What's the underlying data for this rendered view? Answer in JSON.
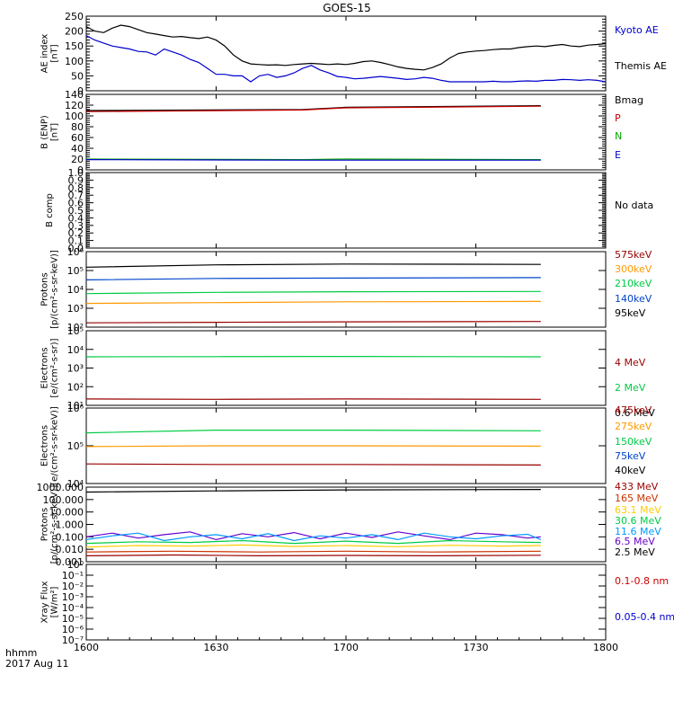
{
  "title": "GOES-15",
  "footer": {
    "time_label": "hhmm",
    "date_label": "2017 Aug 11"
  },
  "x_ticks": [
    "1600",
    "1630",
    "1700",
    "1730",
    "1800"
  ],
  "panels": [
    {
      "id": "ae",
      "ylabel": [
        "AE index",
        "[nT]"
      ],
      "y_ticks": [
        "0",
        "50",
        "100",
        "150",
        "200",
        "250"
      ],
      "legend": [
        {
          "text": "Kyoto AE",
          "color": "#0000cc"
        },
        {
          "text": "Themis AE",
          "color": "#000000"
        }
      ]
    },
    {
      "id": "bfield",
      "ylabel": [
        "B (ENP)",
        "[nT]"
      ],
      "y_ticks": [
        "0",
        "20",
        "40",
        "60",
        "80",
        "100",
        "120",
        "140"
      ],
      "legend": [
        {
          "text": "Bmag",
          "color": "#000000"
        },
        {
          "text": "P",
          "color": "#cc0000"
        },
        {
          "text": "N",
          "color": "#00aa00"
        },
        {
          "text": "E",
          "color": "#0000cc"
        }
      ]
    },
    {
      "id": "bcomp",
      "ylabel": [
        "B comp"
      ],
      "y_ticks": [
        "0.0",
        "0.1",
        "0.2",
        "0.3",
        "0.4",
        "0.5",
        "0.6",
        "0.7",
        "0.8",
        "0.9",
        "1.0"
      ],
      "legend": [
        {
          "text": "No data",
          "color": "#000000"
        }
      ]
    },
    {
      "id": "protons",
      "ylabel": [
        "Protons",
        "[p/(cm²-s-sr-keV)]"
      ],
      "y_ticks": [
        "10²",
        "10³",
        "10⁴",
        "10⁵",
        "10⁶"
      ],
      "legend": [
        {
          "text": "575keV",
          "color": "#990000"
        },
        {
          "text": "300keV",
          "color": "#ff9900"
        },
        {
          "text": "210keV",
          "color": "#00cc44"
        },
        {
          "text": "140keV",
          "color": "#0044cc"
        },
        {
          "text": "95keV",
          "color": "#000000"
        }
      ]
    },
    {
      "id": "electrons_mev",
      "ylabel": [
        "Electrons",
        "[e/(cm²-s-sr)]"
      ],
      "y_ticks": [
        "10¹",
        "10²",
        "10³",
        "10⁴",
        "10⁵"
      ],
      "legend": [
        {
          "text": "4 MeV",
          "color": "#990000"
        },
        {
          "text": "2 MeV",
          "color": "#00cc44"
        },
        {
          "text": "0.6 MeV",
          "color": "#000000"
        }
      ]
    },
    {
      "id": "electrons_kev",
      "ylabel": [
        "Electrons",
        "[e/(cm²-s-sr-keV)]"
      ],
      "y_ticks": [
        "10⁴",
        "10⁵",
        "10⁶"
      ],
      "legend": [
        {
          "text": "475keV",
          "color": "#990000"
        },
        {
          "text": "275keV",
          "color": "#ff9900"
        },
        {
          "text": "150keV",
          "color": "#00cc44"
        },
        {
          "text": "75keV",
          "color": "#0044cc"
        },
        {
          "text": "40keV",
          "color": "#000000"
        }
      ]
    },
    {
      "id": "protons_mev",
      "ylabel": [
        "Protons",
        "[p/(cm²-s-sr-keV)]"
      ],
      "y_ticks": [
        "0.001",
        "0.010",
        "0.100",
        "1.000",
        "10.000",
        "100.000",
        "1000.000"
      ],
      "legend": [
        {
          "text": "433 MeV",
          "color": "#990000"
        },
        {
          "text": "165 MeV",
          "color": "#cc3300"
        },
        {
          "text": "63.1 MeV",
          "color": "#ffcc00"
        },
        {
          "text": "30.6 MeV",
          "color": "#00cc44"
        },
        {
          "text": "11.6 MeV",
          "color": "#0099ff"
        },
        {
          "text": "6.5 MeV",
          "color": "#6600cc"
        },
        {
          "text": "2.5 MeV",
          "color": "#000000"
        }
      ]
    },
    {
      "id": "xray",
      "ylabel": [
        "Xray Flux",
        "[W/m²]"
      ],
      "y_ticks": [
        "10⁻⁷",
        "10⁻⁶",
        "10⁻⁵",
        "10⁻⁴",
        "10⁻³",
        "10⁻²",
        "10⁻¹",
        "10⁰"
      ],
      "legend": [
        {
          "text": "0.1-0.8 nm",
          "color": "#cc0000"
        },
        {
          "text": "0.05-0.4 nm",
          "color": "#0000cc"
        }
      ]
    }
  ],
  "chart_data": [
    {
      "type": "line",
      "ylim": [
        0,
        250
      ],
      "series": [
        {
          "name": "Themis AE",
          "color": "#000000",
          "x": [
            1600,
            1602,
            1604,
            1606,
            1608,
            1610,
            1612,
            1614,
            1616,
            1618,
            1620,
            1622,
            1624,
            1626,
            1628,
            1630,
            1632,
            1634,
            1636,
            1638,
            1640,
            1642,
            1644,
            1646,
            1648,
            1650,
            1652,
            1654,
            1656,
            1658,
            1700,
            1702,
            1704,
            1706,
            1708,
            1710,
            1712,
            1714,
            1716,
            1718,
            1720,
            1722,
            1724,
            1726,
            1728,
            1730,
            1732,
            1734,
            1736,
            1738,
            1740,
            1742,
            1744,
            1746,
            1748,
            1750,
            1752,
            1754,
            1756,
            1758,
            1800
          ],
          "y": [
            215,
            200,
            195,
            210,
            220,
            215,
            205,
            195,
            190,
            185,
            180,
            182,
            178,
            175,
            180,
            170,
            150,
            120,
            100,
            90,
            88,
            86,
            87,
            85,
            88,
            90,
            92,
            90,
            88,
            90,
            88,
            92,
            98,
            100,
            95,
            88,
            80,
            75,
            72,
            70,
            78,
            90,
            110,
            125,
            130,
            133,
            135,
            138,
            140,
            140,
            145,
            148,
            150,
            148,
            152,
            155,
            150,
            148,
            153,
            155,
            158
          ]
        },
        {
          "name": "Kyoto AE",
          "color": "#0000cc",
          "x": [
            1600,
            1602,
            1604,
            1606,
            1608,
            1610,
            1612,
            1614,
            1616,
            1618,
            1620,
            1622,
            1624,
            1626,
            1628,
            1630,
            1632,
            1634,
            1636,
            1638,
            1640,
            1642,
            1644,
            1646,
            1648,
            1650,
            1652,
            1654,
            1656,
            1658,
            1700,
            1702,
            1704,
            1706,
            1708,
            1710,
            1712,
            1714,
            1716,
            1718,
            1720,
            1722,
            1724,
            1726,
            1728,
            1730,
            1732,
            1734,
            1736,
            1738,
            1740,
            1742,
            1744,
            1746,
            1748,
            1750,
            1752,
            1754,
            1756,
            1758,
            1800
          ],
          "y": [
            185,
            170,
            160,
            150,
            145,
            140,
            132,
            130,
            120,
            140,
            130,
            120,
            105,
            95,
            75,
            55,
            55,
            50,
            50,
            30,
            50,
            55,
            45,
            50,
            60,
            75,
            85,
            70,
            60,
            48,
            45,
            40,
            42,
            45,
            48,
            45,
            42,
            38,
            40,
            45,
            42,
            35,
            30,
            30,
            30,
            30,
            30,
            32,
            30,
            30,
            32,
            33,
            32,
            35,
            35,
            38,
            37,
            35,
            37,
            35,
            30
          ]
        }
      ]
    },
    {
      "type": "line",
      "ylim": [
        0,
        140
      ],
      "series": [
        {
          "name": "Bmag",
          "color": "#000000",
          "x": [
            1600,
            1650,
            1700,
            1745,
            1758,
            1800
          ],
          "y": [
            110,
            112,
            116,
            119,
            null,
            122
          ]
        },
        {
          "name": "P",
          "color": "#cc0000",
          "x": [
            1600,
            1650,
            1700,
            1745,
            1758,
            1800
          ],
          "y": [
            108,
            111,
            115,
            118,
            null,
            121
          ]
        },
        {
          "name": "N",
          "color": "#00aa00",
          "x": [
            1600,
            1650,
            1700,
            1745,
            1758,
            1800
          ],
          "y": [
            20,
            19,
            20,
            19,
            null,
            19
          ]
        },
        {
          "name": "E",
          "color": "#0000cc",
          "x": [
            1600,
            1650,
            1700,
            1745,
            1758,
            1800
          ],
          "y": [
            19,
            18,
            18,
            18,
            null,
            18
          ]
        }
      ]
    },
    {
      "type": "line",
      "ylim": [
        0,
        1
      ],
      "series": []
    },
    {
      "type": "line",
      "log": true,
      "ylim": [
        100,
        1000000
      ],
      "series": [
        {
          "name": "95keV",
          "color": "#000000",
          "x": [
            1600,
            1630,
            1700,
            1745,
            1758,
            1800
          ],
          "y": [
            150000,
            200000,
            220000,
            210000,
            null,
            220000
          ]
        },
        {
          "name": "140keV",
          "color": "#0044cc",
          "x": [
            1600,
            1630,
            1700,
            1745,
            1758,
            1800
          ],
          "y": [
            32000,
            38000,
            40000,
            42000,
            null,
            42000
          ]
        },
        {
          "name": "210keV",
          "color": "#00cc44",
          "x": [
            1600,
            1630,
            1700,
            1745,
            1758,
            1800
          ],
          "y": [
            6000,
            7000,
            7500,
            7800,
            null,
            7800
          ]
        },
        {
          "name": "300keV",
          "color": "#ff9900",
          "x": [
            1600,
            1630,
            1700,
            1745,
            1758,
            1800
          ],
          "y": [
            1800,
            2000,
            2200,
            2300,
            null,
            2300
          ]
        },
        {
          "name": "575keV",
          "color": "#990000",
          "x": [
            1600,
            1630,
            1700,
            1745,
            1758,
            1800
          ],
          "y": [
            170,
            180,
            190,
            200,
            null,
            200
          ]
        }
      ]
    },
    {
      "type": "line",
      "log": true,
      "ylim": [
        10,
        100000
      ],
      "series": [
        {
          "name": "2 MeV",
          "color": "#00cc44",
          "x": [
            1600,
            1630,
            1700,
            1745,
            1758,
            1800
          ],
          "y": [
            4000,
            4100,
            4200,
            4000,
            null,
            4100
          ]
        },
        {
          "name": "4 MeV",
          "color": "#990000",
          "x": [
            1600,
            1630,
            1700,
            1745,
            1758,
            1800
          ],
          "y": [
            22,
            21,
            22,
            21,
            null,
            21
          ]
        }
      ]
    },
    {
      "type": "line",
      "log": true,
      "ylim": [
        10000,
        1000000
      ],
      "series": [
        {
          "name": "150keV",
          "color": "#00cc44",
          "x": [
            1600,
            1630,
            1700,
            1745,
            1758,
            1800
          ],
          "y": [
            220000,
            260000,
            260000,
            250000,
            null,
            250000
          ]
        },
        {
          "name": "275keV",
          "color": "#ff9900",
          "x": [
            1600,
            1630,
            1700,
            1745,
            1758,
            1800
          ],
          "y": [
            95000,
            100000,
            100000,
            98000,
            null,
            98000
          ]
        },
        {
          "name": "475keV",
          "color": "#990000",
          "x": [
            1600,
            1630,
            1700,
            1745,
            1758,
            1800
          ],
          "y": [
            33000,
            32000,
            32000,
            31000,
            null,
            31000
          ]
        }
      ]
    },
    {
      "type": "line",
      "log": true,
      "ylim": [
        0.001,
        1000
      ],
      "series": [
        {
          "name": "2.5 MeV",
          "color": "#000000",
          "x": [
            1600,
            1630,
            1700,
            1745,
            1758,
            1800
          ],
          "y": [
            400,
            500,
            600,
            650,
            null,
            700
          ]
        },
        {
          "name": "6.5 MeV",
          "color": "#6600cc",
          "x": [
            1600,
            1606,
            1612,
            1618,
            1624,
            1630,
            1636,
            1642,
            1648,
            1654,
            1700,
            1706,
            1712,
            1718,
            1724,
            1730,
            1736,
            1742,
            1745,
            1758,
            1800
          ],
          "y": [
            0.1,
            0.2,
            0.08,
            0.15,
            0.25,
            0.06,
            0.18,
            0.1,
            0.22,
            0.07,
            0.2,
            0.09,
            0.25,
            0.12,
            0.06,
            0.2,
            0.15,
            0.08,
            0.1,
            null,
            0.12
          ]
        },
        {
          "name": "11.6 MeV",
          "color": "#0099ff",
          "x": [
            1600,
            1606,
            1612,
            1618,
            1624,
            1630,
            1636,
            1642,
            1648,
            1654,
            1700,
            1706,
            1712,
            1718,
            1724,
            1730,
            1736,
            1742,
            1745,
            1758,
            1800
          ],
          "y": [
            0.06,
            0.12,
            0.2,
            0.05,
            0.1,
            0.15,
            0.07,
            0.18,
            0.05,
            0.12,
            0.08,
            0.15,
            0.06,
            0.2,
            0.1,
            0.07,
            0.12,
            0.16,
            0.06,
            null,
            0.08
          ]
        },
        {
          "name": "30.6 MeV",
          "color": "#00cc44",
          "x": [
            1600,
            1612,
            1624,
            1636,
            1648,
            1700,
            1712,
            1724,
            1736,
            1745,
            1758,
            1800
          ],
          "y": [
            0.03,
            0.04,
            0.035,
            0.05,
            0.03,
            0.045,
            0.03,
            0.05,
            0.04,
            0.035,
            null,
            0.04
          ]
        },
        {
          "name": "63.1 MeV",
          "color": "#ffcc00",
          "x": [
            1600,
            1612,
            1624,
            1636,
            1648,
            1700,
            1712,
            1724,
            1736,
            1745,
            1758,
            1800
          ],
          "y": [
            0.015,
            0.02,
            0.018,
            0.022,
            0.017,
            0.02,
            0.016,
            0.021,
            0.018,
            0.02,
            null,
            0.019
          ]
        },
        {
          "name": "165 MeV",
          "color": "#cc3300",
          "x": [
            1600,
            1620,
            1640,
            1700,
            1720,
            1745,
            1758,
            1800
          ],
          "y": [
            0.006,
            0.007,
            0.006,
            0.007,
            0.006,
            0.007,
            null,
            0.006
          ]
        },
        {
          "name": "433 MeV",
          "color": "#990000",
          "x": [
            1600,
            1620,
            1640,
            1700,
            1720,
            1745,
            1758,
            1800
          ],
          "y": [
            0.003,
            0.0035,
            0.003,
            0.0032,
            0.003,
            0.0033,
            null,
            0.003
          ]
        }
      ]
    },
    {
      "type": "line",
      "log": true,
      "ylim": [
        1e-07,
        1
      ],
      "series": []
    }
  ]
}
